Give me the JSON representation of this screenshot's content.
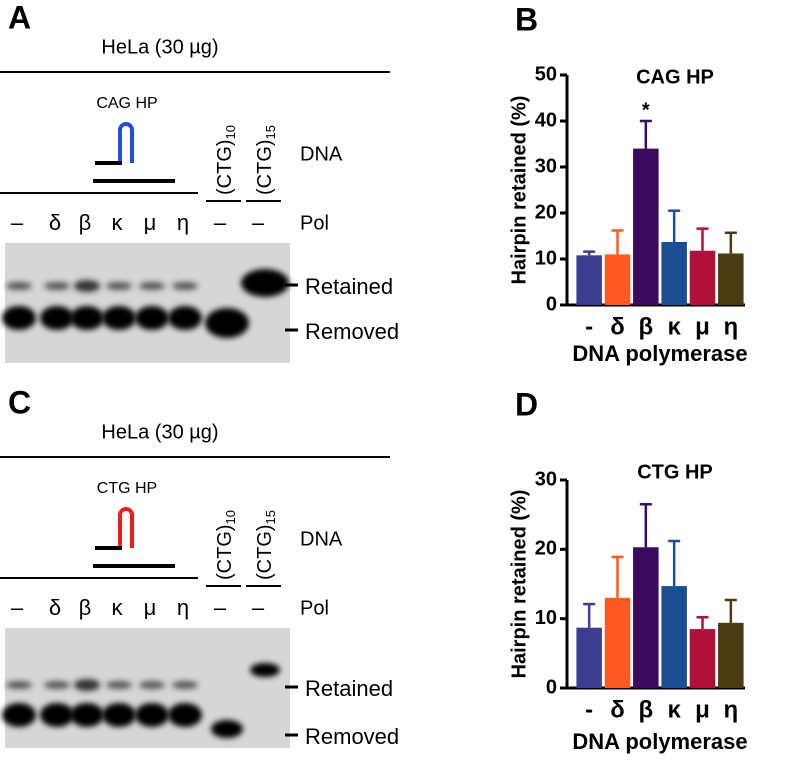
{
  "gels": [
    {
      "label": "A",
      "cell": "HeLa (30 µg)",
      "substrate": "CAG HP",
      "hairpin_color": "#1f4fd8",
      "dna": "DNA",
      "pol": "Pol",
      "lanes": [
        "–",
        "δ",
        "β",
        "κ",
        "μ",
        "η",
        "–",
        "–"
      ],
      "controls": [
        {
          "base": "(CTG)",
          "sub": "10"
        },
        {
          "base": "(CTG)",
          "sub": "15"
        }
      ],
      "bands": [
        "Retained",
        "Removed"
      ]
    },
    {
      "label": "C",
      "cell": "HeLa (30 µg)",
      "substrate": "CTG HP",
      "hairpin_color": "#e8201a",
      "dna": "DNA",
      "pol": "Pol",
      "lanes": [
        "–",
        "δ",
        "β",
        "κ",
        "μ",
        "η",
        "–",
        "–"
      ],
      "controls": [
        {
          "base": "(CTG)",
          "sub": "10"
        },
        {
          "base": "(CTG)",
          "sub": "15"
        }
      ],
      "bands": [
        "Retained",
        "Removed"
      ]
    }
  ],
  "chart_data": [
    {
      "type": "bar",
      "label": "B",
      "title": "CAG HP",
      "ylabel": "Hairpin retained (%)",
      "xlabel": "DNA polymerase",
      "categories": [
        "-",
        "δ",
        "β",
        "κ",
        "μ",
        "η"
      ],
      "values": [
        10.8,
        11,
        34,
        13.7,
        11.8,
        11.2
      ],
      "errors": [
        0.8,
        5.2,
        6,
        6.8,
        4.8,
        4.5
      ],
      "colors": [
        "#3d3d8f",
        "#ff5a1f",
        "#3a0a5e",
        "#1a4f94",
        "#b0103a",
        "#4a3b10"
      ],
      "annotations": [
        {
          "text": "*",
          "x": "β"
        }
      ],
      "ylim": [
        0,
        50
      ],
      "yticks": [
        0,
        10,
        20,
        30,
        40,
        50
      ]
    },
    {
      "type": "bar",
      "label": "D",
      "title": "CTG HP",
      "ylabel": "Hairpin retained (%)",
      "xlabel": "DNA polymerase",
      "categories": [
        "-",
        "δ",
        "β",
        "κ",
        "μ",
        "η"
      ],
      "values": [
        8.7,
        13,
        20.3,
        14.7,
        8.5,
        9.4
      ],
      "errors": [
        3.4,
        5.9,
        6.2,
        6.5,
        1.7,
        3.3
      ],
      "colors": [
        "#3d3d8f",
        "#ff5a1f",
        "#3a0a5e",
        "#1a4f94",
        "#b0103a",
        "#4a3b10"
      ],
      "annotations": [],
      "ylim": [
        0,
        30
      ],
      "yticks": [
        0,
        10,
        20,
        30
      ]
    }
  ]
}
